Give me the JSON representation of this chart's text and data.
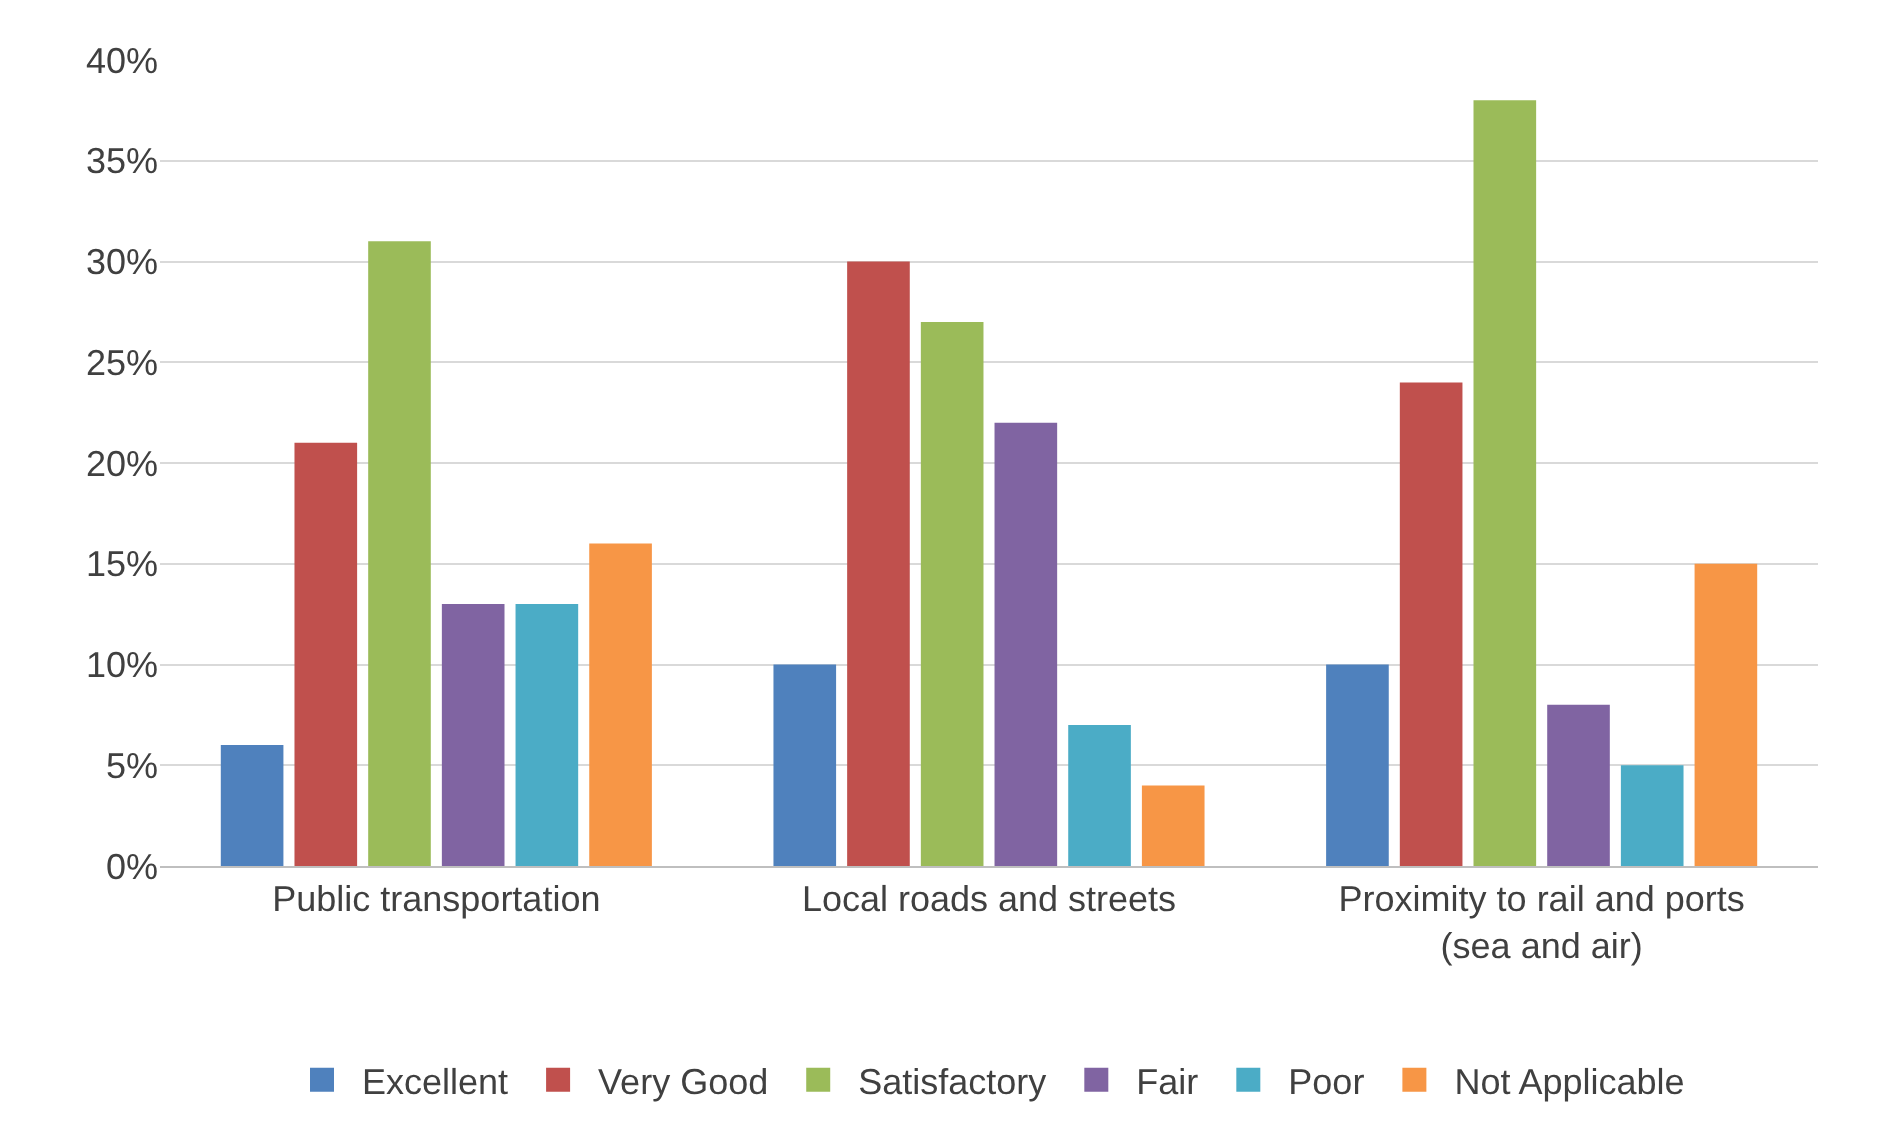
{
  "chart_data": {
    "type": "bar",
    "categories": [
      "Public transportation",
      "Local roads and streets",
      "Proximity to rail and ports\n(sea and air)"
    ],
    "series": [
      {
        "name": "Excellent",
        "color": "#4f81bd",
        "values": [
          6,
          10,
          10
        ]
      },
      {
        "name": "Very Good",
        "color": "#c0504d",
        "values": [
          21,
          30,
          24
        ]
      },
      {
        "name": "Satisfactory",
        "color": "#9bbb59",
        "values": [
          31,
          27,
          38
        ]
      },
      {
        "name": "Fair",
        "color": "#8064a2",
        "values": [
          13,
          22,
          8
        ]
      },
      {
        "name": "Poor",
        "color": "#4bacc6",
        "values": [
          13,
          7,
          5
        ]
      },
      {
        "name": "Not Applicable",
        "color": "#f79646",
        "values": [
          16,
          4,
          15
        ]
      }
    ],
    "ylim": [
      0,
      40
    ],
    "yticks": [
      {
        "value": 0,
        "label": "0%"
      },
      {
        "value": 5,
        "label": "5%"
      },
      {
        "value": 10,
        "label": "10%"
      },
      {
        "value": 15,
        "label": "15%"
      },
      {
        "value": 20,
        "label": "20%"
      },
      {
        "value": 25,
        "label": "25%"
      },
      {
        "value": 30,
        "label": "30%"
      },
      {
        "value": 35,
        "label": "35%"
      },
      {
        "value": 40,
        "label": "40%"
      }
    ],
    "grid": "y",
    "legend": "bottom"
  }
}
